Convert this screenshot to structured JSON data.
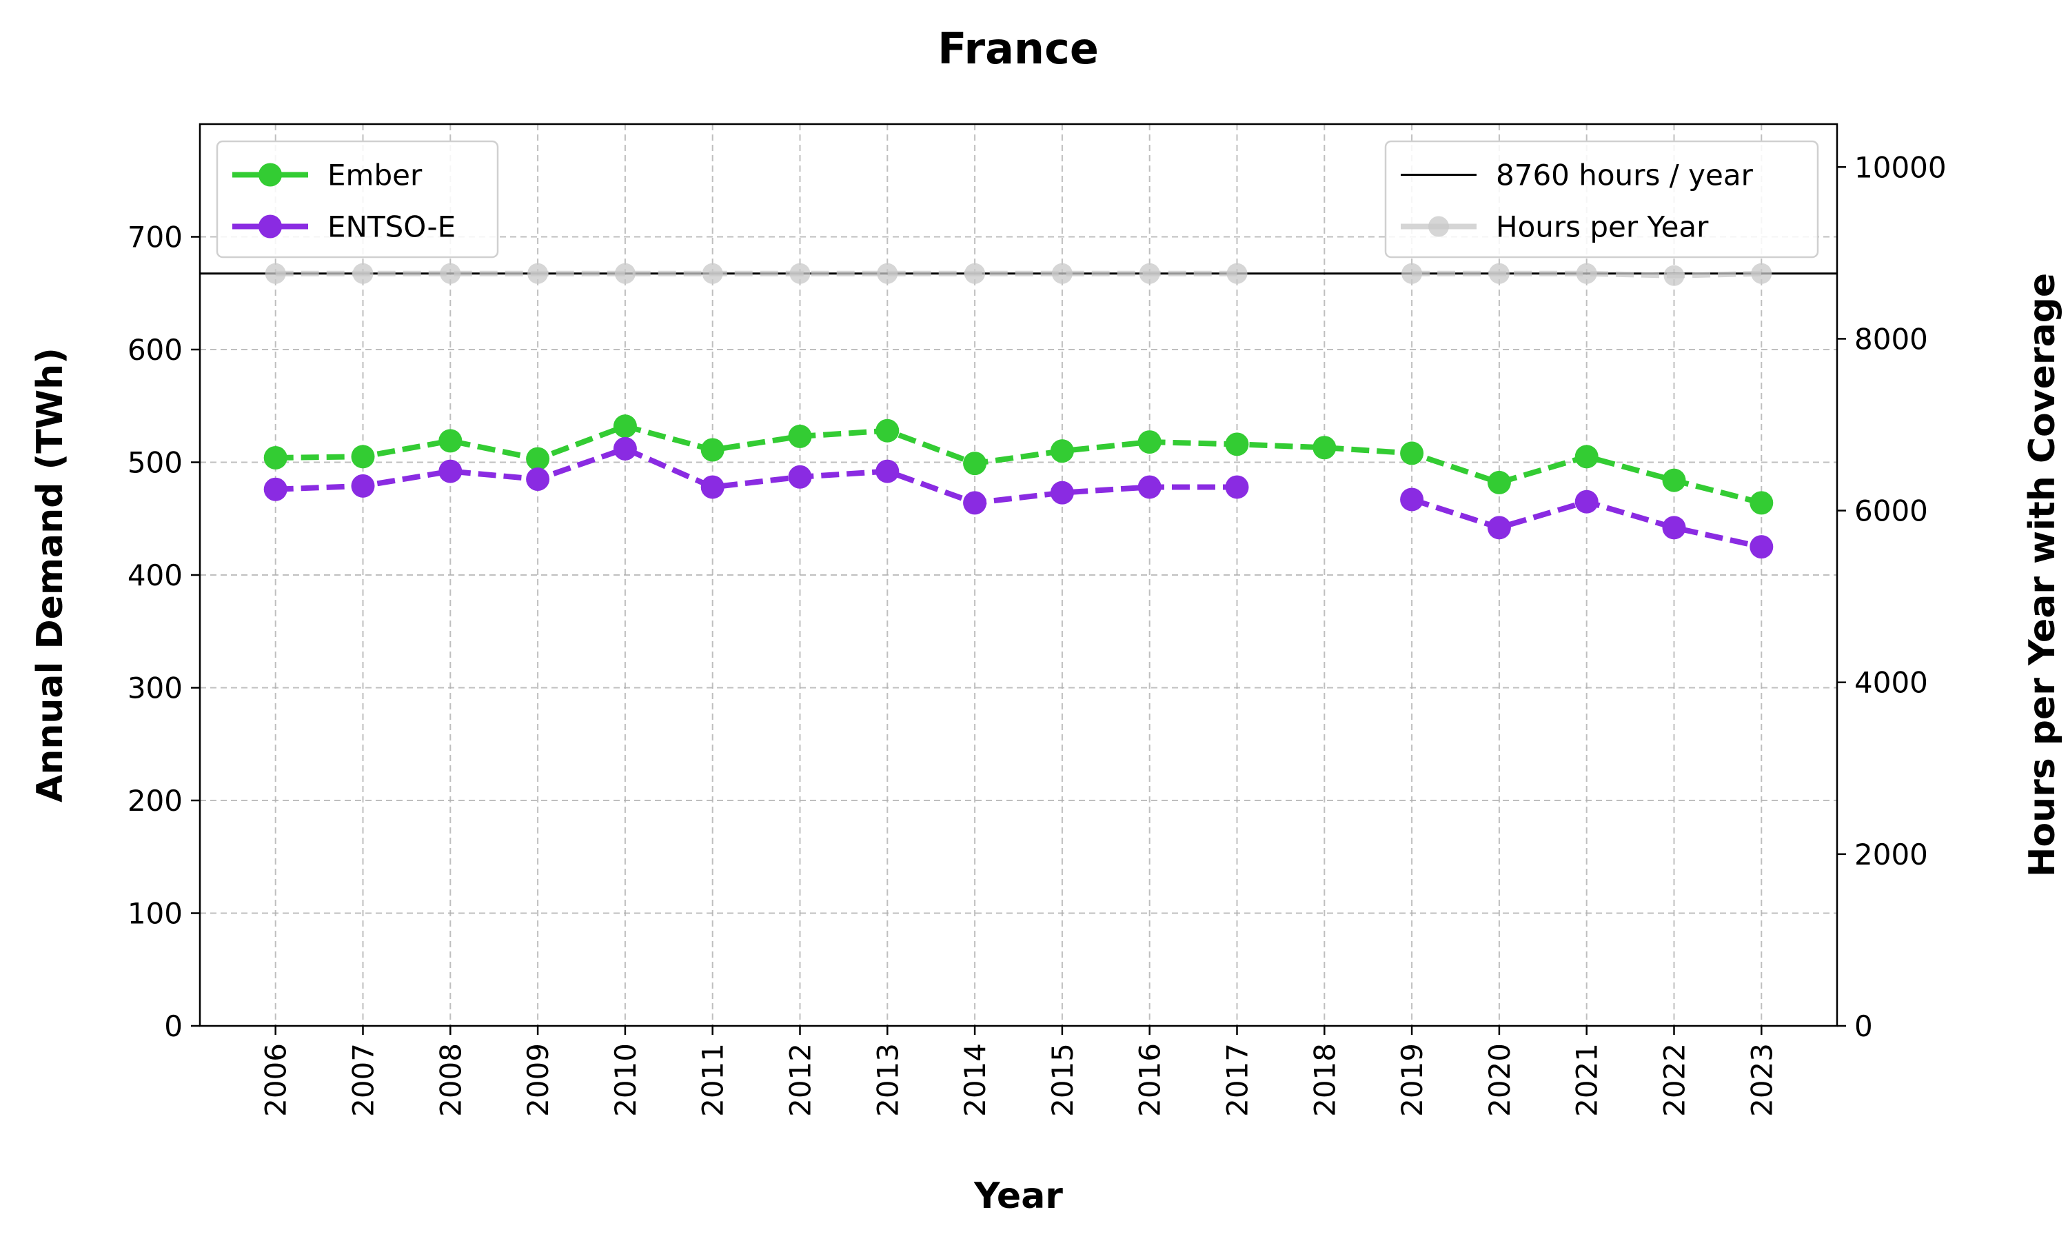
{
  "chart_data": {
    "type": "line",
    "title": "France",
    "xlabel": "Year",
    "ylabel": "Annual Demand (TWh)",
    "y2label": "Hours per Year with Coverage",
    "categories": [
      "2006",
      "2007",
      "2008",
      "2009",
      "2010",
      "2011",
      "2012",
      "2013",
      "2014",
      "2015",
      "2016",
      "2017",
      "2018",
      "2019",
      "2020",
      "2021",
      "2022",
      "2023"
    ],
    "ylim": [
      0,
      800
    ],
    "yticks": [
      0,
      100,
      200,
      300,
      400,
      500,
      600,
      700
    ],
    "y2lim": [
      0,
      10500
    ],
    "y2ticks": [
      0,
      2000,
      4000,
      6000,
      8000,
      10000
    ],
    "grid": true,
    "series": [
      {
        "name": "Ember",
        "axis": "left",
        "color": "#33cc33",
        "style": "dashed-markers",
        "values": [
          504,
          505,
          519,
          503,
          532,
          511,
          523,
          528,
          499,
          510,
          518,
          516,
          513,
          508,
          482,
          505,
          484,
          464
        ]
      },
      {
        "name": "ENTSO-E",
        "axis": "left",
        "color": "#8a2be2",
        "style": "dashed-markers",
        "values": [
          476,
          479,
          492,
          485,
          512,
          478,
          487,
          492,
          464,
          473,
          478,
          478,
          null,
          467,
          442,
          465,
          442,
          425
        ]
      },
      {
        "name": "Hours per Year",
        "axis": "right",
        "color": "#c8c8c8",
        "style": "dashed-markers",
        "values": [
          8760,
          8760,
          8760,
          8760,
          8760,
          8760,
          8760,
          8760,
          8760,
          8760,
          8760,
          8760,
          null,
          8760,
          8760,
          8760,
          8736,
          8760
        ]
      }
    ],
    "reference_line": {
      "name": "8760 hours / year",
      "axis": "right",
      "value": 8760,
      "color": "#000000"
    },
    "legend_left": {
      "placement": "top-left",
      "items": [
        "Ember",
        "ENTSO-E"
      ]
    },
    "legend_right": {
      "placement": "top-right",
      "items": [
        "8760 hours / year",
        "Hours per Year"
      ]
    }
  }
}
